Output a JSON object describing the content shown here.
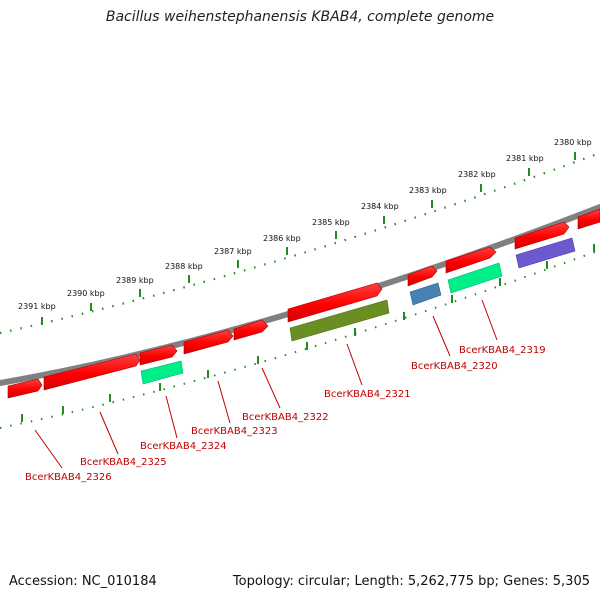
{
  "title": "Bacillus weihenstephanensis KBAB4, complete genome",
  "footer": {
    "accession": "Accession: NC_010184",
    "summary": "Topology: circular; Length: 5,262,775 bp; Genes: 5,305"
  },
  "colors": {
    "backbone": "#808080",
    "forward_gene": "#ff0000",
    "reverse_gene": "#ff0000",
    "cog_green": "#00ee88",
    "cog_olive": "#6b8e23",
    "cog_steel": "#4682b4",
    "cog_purple": "#6a5acd",
    "tick_track": "#228b22",
    "label_text": "#c00000"
  },
  "scale": {
    "tick_labels": [
      "2380 kbp",
      "2381 kbp",
      "2382 kbp",
      "2383 kbp",
      "2384 kbp",
      "2385 kbp",
      "2386 kbp",
      "2387 kbp",
      "2388 kbp",
      "2389 kbp",
      "2390 kbp",
      "2391 kbp"
    ]
  },
  "genes": [
    {
      "label": "BcerKBAB4_2319"
    },
    {
      "label": "BcerKBAB4_2320"
    },
    {
      "label": "BcerKBAB4_2321"
    },
    {
      "label": "BcerKBAB4_2322"
    },
    {
      "label": "BcerKBAB4_2323"
    },
    {
      "label": "BcerKBAB4_2324"
    },
    {
      "label": "BcerKBAB4_2325"
    },
    {
      "label": "BcerKBAB4_2326"
    }
  ]
}
